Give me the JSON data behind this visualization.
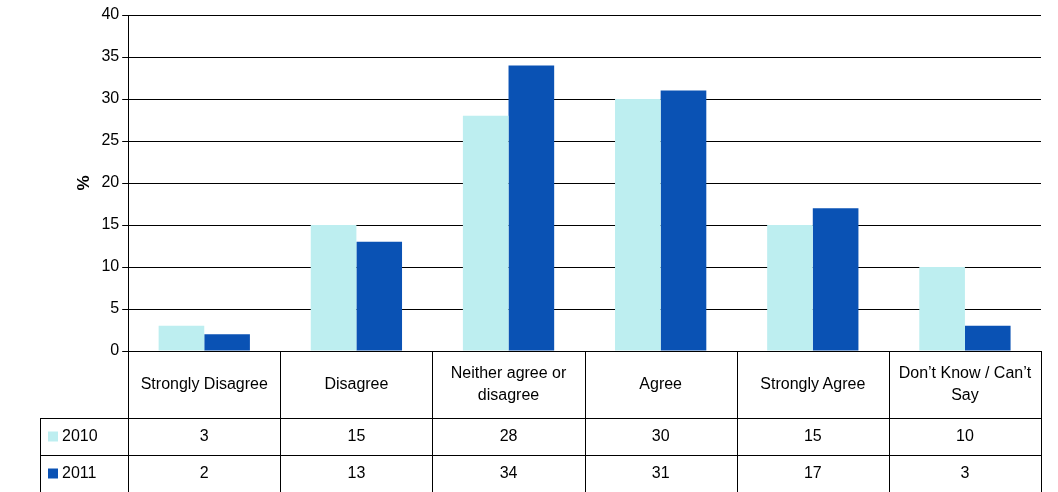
{
  "chart_data": {
    "type": "bar",
    "ylabel": "%",
    "categories": [
      "Strongly Disagree",
      "Disagree",
      "Neither agree or disagree",
      "Agree",
      "Strongly Agree",
      "Don’t Know / Can’t Say"
    ],
    "series": [
      {
        "name": "2010",
        "color": "#bdeef0",
        "values": [
          3,
          15,
          28,
          30,
          15,
          10
        ]
      },
      {
        "name": "2011",
        "color": "#0a52b4",
        "values": [
          2,
          13,
          34,
          31,
          17,
          3
        ]
      }
    ],
    "ylim": [
      0,
      40
    ],
    "yticks": [
      0,
      5,
      10,
      15,
      20,
      25,
      30,
      35,
      40
    ],
    "grid": "y",
    "legend": "bottom",
    "data_labels": true
  }
}
